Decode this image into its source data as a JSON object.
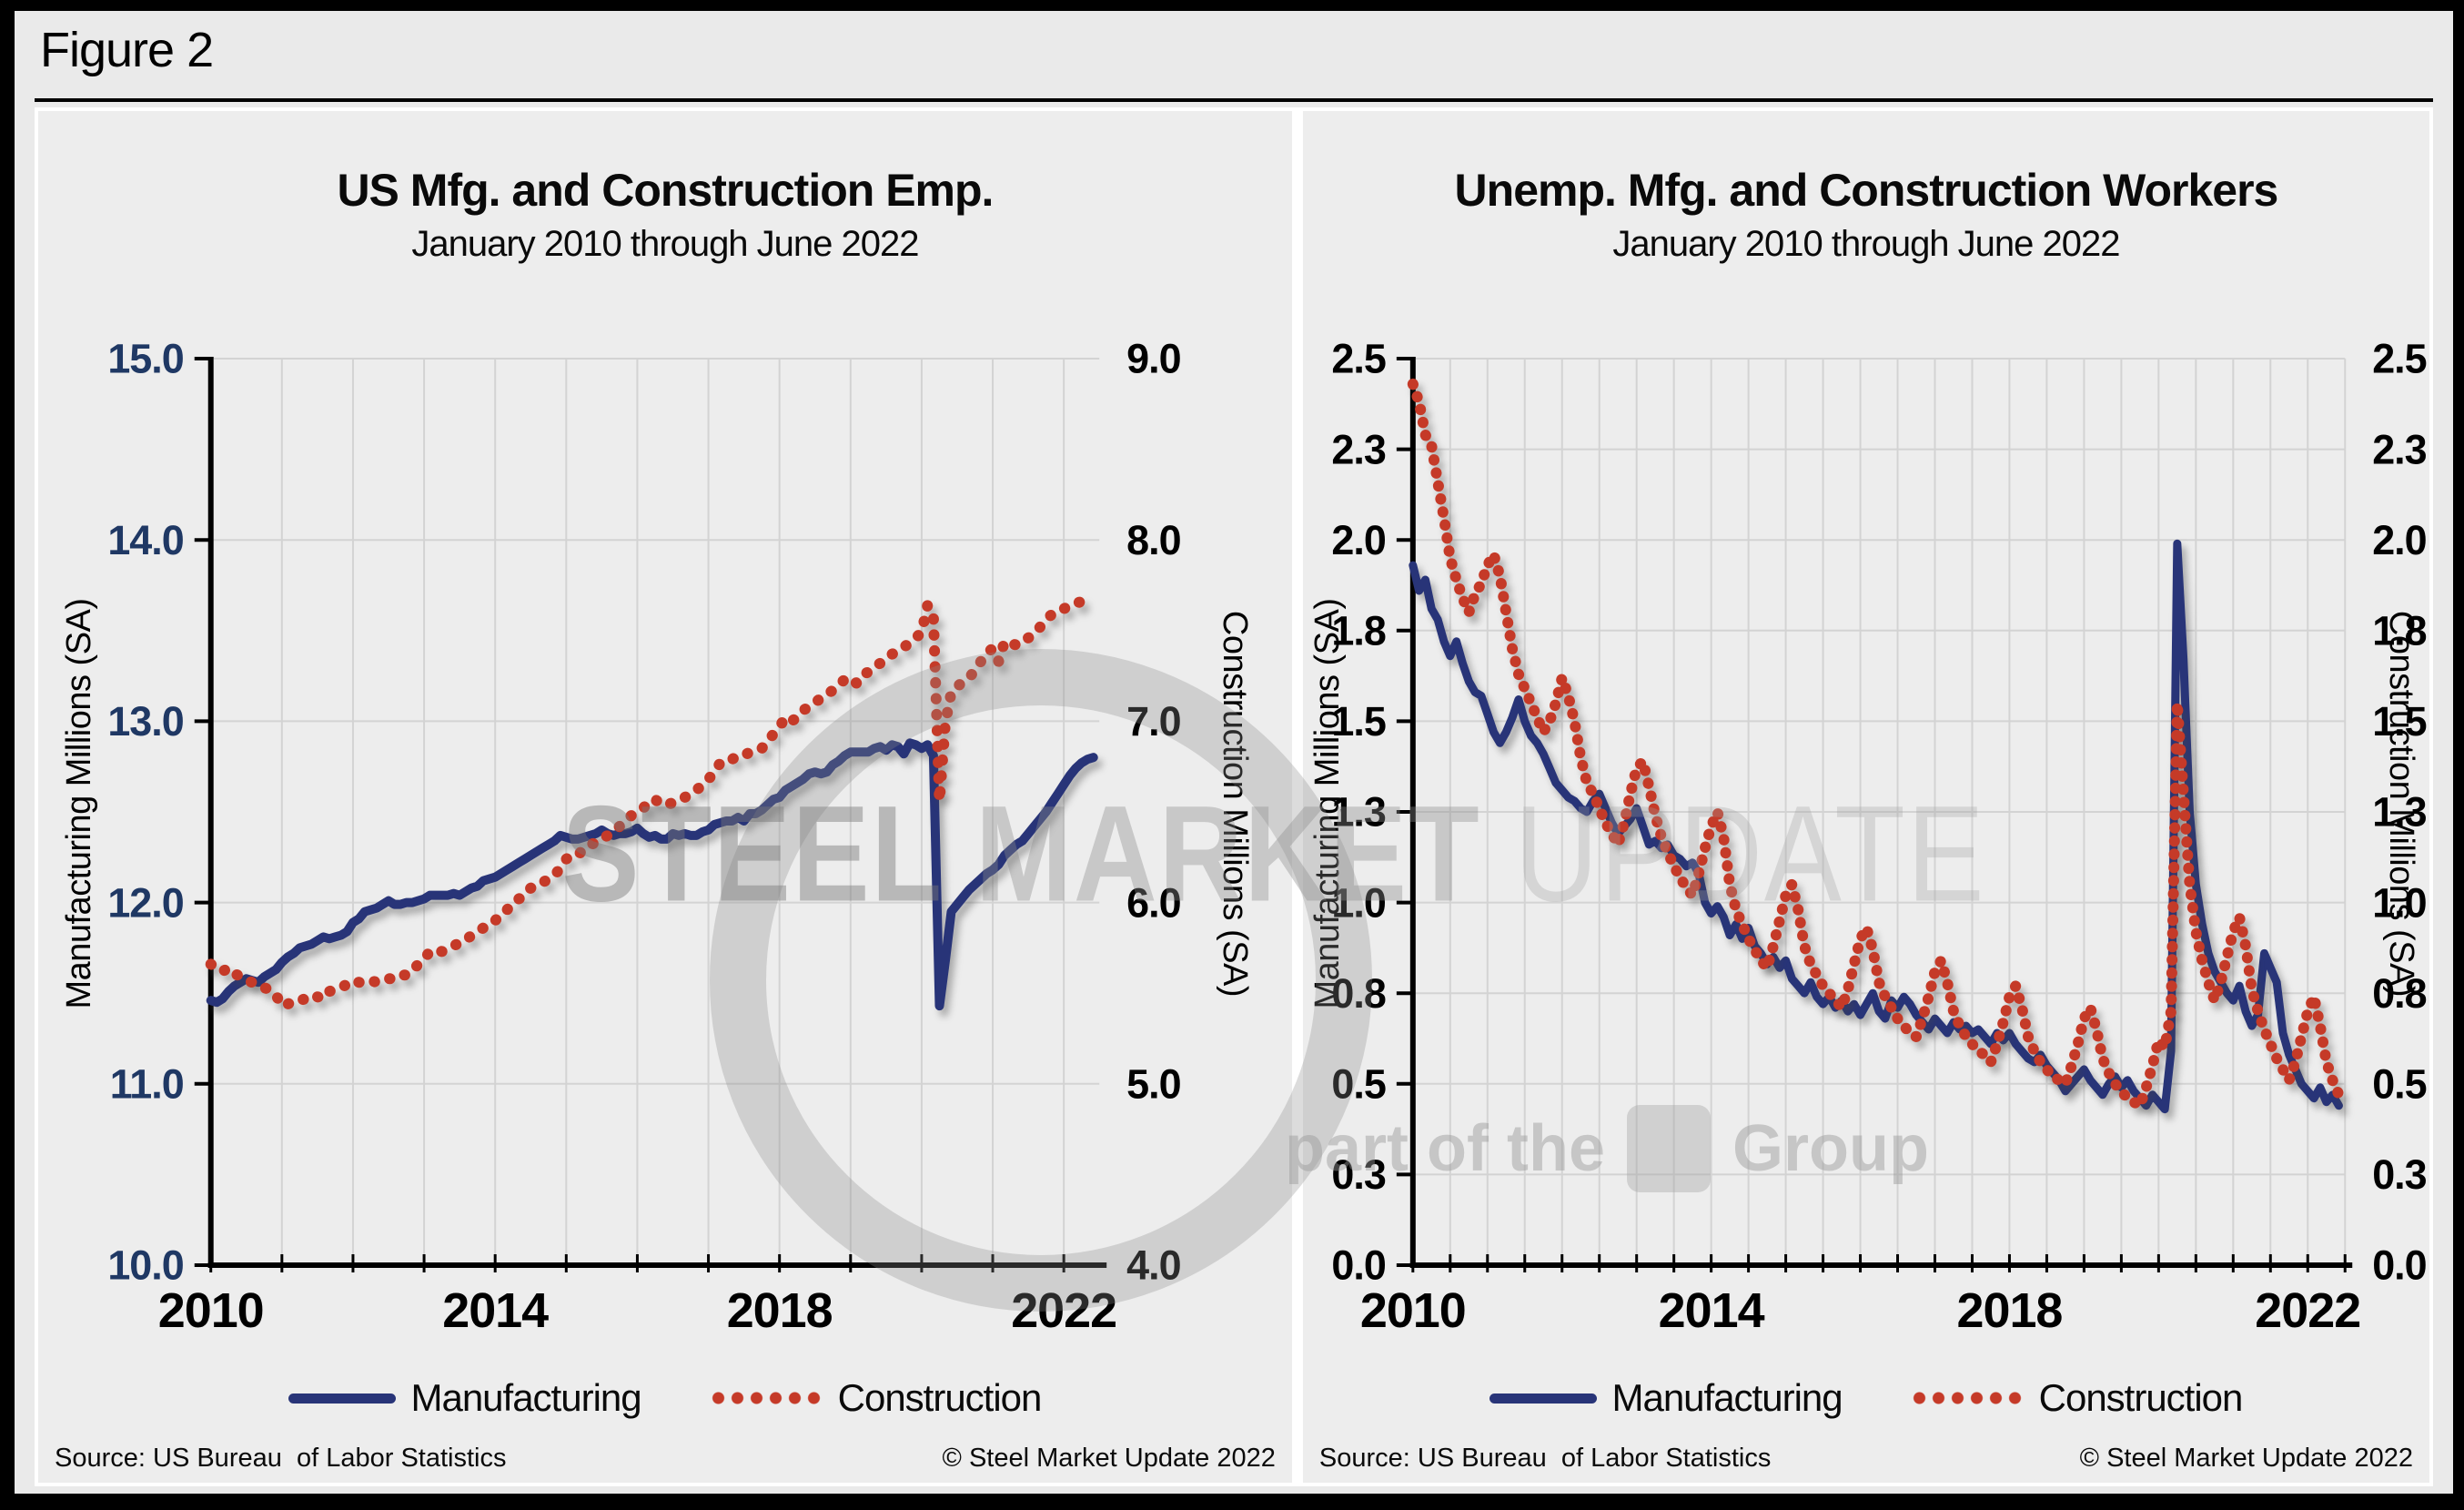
{
  "figure": {
    "label": "Figure 2"
  },
  "watermark": {
    "word1": "STEEL",
    "word2": "MARKET",
    "word3": "UPDATE",
    "tagline_pre": "part of the",
    "tagline_post": "Group"
  },
  "chart_data": [
    {
      "type": "line",
      "title": "US Mfg. and Construction Emp.",
      "subtitle": "January 2010 through June 2022",
      "x_axis": {
        "start": "January 2010",
        "end": "June 2022",
        "min_year": 2010,
        "max_year": 2022.5,
        "major_tick_years": [
          2010,
          2014,
          2018,
          2022
        ],
        "major_tick_labels": [
          "2010",
          "2014",
          "2018",
          "2022"
        ],
        "gridline_interval_years": 1
      },
      "y_left": {
        "label": "Manufacturing Millions (SA)",
        "min": 10,
        "max": 15,
        "ticks": [
          15,
          14,
          13,
          12,
          11,
          10
        ],
        "tick_labels": [
          "15.0",
          "14.0",
          "13.0",
          "12.0",
          "11.0",
          "10.0"
        ],
        "color": "#1F3864"
      },
      "y_right": {
        "label": "Construction Millions (SA)",
        "min": 4,
        "max": 9,
        "ticks": [
          9,
          8,
          7,
          6,
          5,
          4
        ],
        "tick_labels": [
          "9.0",
          "8.0",
          "7.0",
          "6.0",
          "5.0",
          "4.0"
        ],
        "color": "#000000"
      },
      "legend": [
        "Manufacturing",
        "Construction"
      ],
      "source": "Source: US Bureau  of Labor Statistics",
      "copyright": "© Steel Market Update 2022",
      "series": [
        {
          "name": "Manufacturing",
          "axis": "left",
          "style": "solid",
          "color": "#283478",
          "values": [
            11.46,
            11.45,
            11.47,
            11.51,
            11.54,
            11.56,
            11.58,
            11.57,
            11.56,
            11.59,
            11.61,
            11.63,
            11.67,
            11.7,
            11.72,
            11.75,
            11.76,
            11.77,
            11.79,
            11.81,
            11.8,
            11.81,
            11.82,
            11.84,
            11.89,
            11.91,
            11.95,
            11.96,
            11.97,
            11.99,
            12.01,
            11.99,
            11.99,
            12.0,
            12.0,
            12.01,
            12.02,
            12.04,
            12.04,
            12.04,
            12.04,
            12.05,
            12.04,
            12.06,
            12.08,
            12.09,
            12.12,
            12.13,
            12.14,
            12.16,
            12.18,
            12.2,
            12.22,
            12.24,
            12.26,
            12.28,
            12.3,
            12.32,
            12.34,
            12.37,
            12.36,
            12.35,
            12.35,
            12.36,
            12.37,
            12.38,
            12.4,
            12.38,
            12.37,
            12.38,
            12.38,
            12.39,
            12.41,
            12.38,
            12.36,
            12.37,
            12.35,
            12.35,
            12.38,
            12.37,
            12.38,
            12.37,
            12.37,
            12.39,
            12.4,
            12.43,
            12.44,
            12.45,
            12.45,
            12.47,
            12.45,
            12.49,
            12.49,
            12.51,
            12.54,
            12.57,
            12.58,
            12.62,
            12.64,
            12.66,
            12.68,
            12.71,
            12.72,
            12.71,
            12.72,
            12.76,
            12.78,
            12.81,
            12.83,
            12.83,
            12.83,
            12.83,
            12.85,
            12.86,
            12.84,
            12.87,
            12.86,
            12.82,
            12.88,
            12.87,
            12.85,
            12.87,
            12.81,
            11.43,
            11.68,
            11.95,
            11.99,
            12.03,
            12.07,
            12.1,
            12.13,
            12.16,
            12.18,
            12.21,
            12.26,
            12.29,
            12.32,
            12.34,
            12.38,
            12.42,
            12.46,
            12.5,
            12.55,
            12.6,
            12.65,
            12.7,
            12.74,
            12.77,
            12.79,
            12.8
          ]
        },
        {
          "name": "Construction",
          "axis": "right",
          "style": "dotted",
          "color": "#C53A28",
          "values": [
            5.66,
            5.64,
            5.62,
            5.64,
            5.61,
            5.59,
            5.57,
            5.56,
            5.55,
            5.53,
            5.52,
            5.49,
            5.43,
            5.44,
            5.46,
            5.46,
            5.47,
            5.46,
            5.48,
            5.47,
            5.51,
            5.52,
            5.53,
            5.55,
            5.57,
            5.56,
            5.56,
            5.57,
            5.56,
            5.57,
            5.58,
            5.58,
            5.6,
            5.6,
            5.62,
            5.66,
            5.69,
            5.73,
            5.74,
            5.73,
            5.75,
            5.76,
            5.78,
            5.79,
            5.82,
            5.84,
            5.86,
            5.87,
            5.9,
            5.94,
            5.96,
            6.0,
            6.02,
            6.04,
            6.08,
            6.09,
            6.11,
            6.13,
            6.15,
            6.19,
            6.24,
            6.26,
            6.26,
            6.3,
            6.32,
            6.33,
            6.35,
            6.37,
            6.39,
            6.42,
            6.45,
            6.48,
            6.5,
            6.52,
            6.56,
            6.57,
            6.54,
            6.54,
            6.55,
            6.57,
            6.58,
            6.6,
            6.62,
            6.65,
            6.68,
            6.72,
            6.77,
            6.77,
            6.79,
            6.81,
            6.81,
            6.83,
            6.84,
            6.85,
            6.89,
            6.93,
            6.97,
            7.02,
            7.0,
            7.02,
            7.06,
            7.08,
            7.1,
            7.13,
            7.15,
            7.17,
            7.2,
            7.23,
            7.24,
            7.21,
            7.26,
            7.27,
            7.3,
            7.32,
            7.34,
            7.37,
            7.39,
            7.41,
            7.43,
            7.46,
            7.49,
            7.64,
            7.57,
            6.56,
            6.99,
            7.16,
            7.19,
            7.22,
            7.24,
            7.28,
            7.33,
            7.38,
            7.4,
            7.33,
            7.44,
            7.43,
            7.42,
            7.43,
            7.46,
            7.48,
            7.52,
            7.56,
            7.59,
            7.61,
            7.62,
            7.64,
            7.65,
            7.66,
            7.67,
            7.68
          ]
        }
      ]
    },
    {
      "type": "line",
      "title": "Unemp. Mfg. and Construction Workers",
      "subtitle": "January 2010 through June 2022",
      "x_axis": {
        "start": "January 2010",
        "end": "June 2022",
        "min_year": 2010,
        "max_year": 2022.5,
        "major_tick_years": [
          2010,
          2014,
          2018,
          2022
        ],
        "major_tick_labels": [
          "2010",
          "2014",
          "2018",
          "2022"
        ],
        "gridline_interval_years": 0.5
      },
      "y_left": {
        "label": "Manufacturing Millions (SA)",
        "min": 0,
        "max": 2.5,
        "ticks": [
          2.5,
          2.25,
          2.0,
          1.75,
          1.5,
          1.25,
          1.0,
          0.75,
          0.5,
          0.25,
          0
        ],
        "tick_labels": [
          "2.5",
          "2.3",
          "2.0",
          "1.8",
          "1.5",
          "1.3",
          "1.0",
          "0.8",
          "0.5",
          "0.3",
          "0.0"
        ],
        "color": "#000000"
      },
      "y_right": {
        "label": "Construction Millions (SA)",
        "min": 0,
        "max": 2.5,
        "ticks": [
          2.5,
          2.25,
          2.0,
          1.75,
          1.5,
          1.25,
          1.0,
          0.75,
          0.5,
          0.25,
          0
        ],
        "tick_labels": [
          "2.5",
          "2.3",
          "2.0",
          "1.8",
          "1.5",
          "1.3",
          "1.0",
          "0.8",
          "0.5",
          "0.3",
          "0.0"
        ],
        "color": "#000000"
      },
      "legend": [
        "Manufacturing",
        "Construction"
      ],
      "source": "Source: US Bureau  of Labor Statistics",
      "copyright": "© Steel Market Update 2022",
      "series": [
        {
          "name": "Manufacturing",
          "axis": "left",
          "style": "solid",
          "color": "#283478",
          "values": [
            1.93,
            1.86,
            1.89,
            1.81,
            1.78,
            1.72,
            1.68,
            1.72,
            1.66,
            1.61,
            1.58,
            1.57,
            1.52,
            1.47,
            1.44,
            1.47,
            1.51,
            1.56,
            1.5,
            1.46,
            1.44,
            1.41,
            1.37,
            1.33,
            1.31,
            1.29,
            1.28,
            1.26,
            1.25,
            1.28,
            1.3,
            1.26,
            1.22,
            1.19,
            1.21,
            1.23,
            1.26,
            1.21,
            1.16,
            1.17,
            1.15,
            1.16,
            1.13,
            1.12,
            1.1,
            1.11,
            1.08,
            1.0,
            0.97,
            0.99,
            0.96,
            0.91,
            0.94,
            0.9,
            0.93,
            0.88,
            0.86,
            0.83,
            0.85,
            0.82,
            0.84,
            0.79,
            0.77,
            0.75,
            0.78,
            0.74,
            0.72,
            0.74,
            0.71,
            0.73,
            0.7,
            0.72,
            0.69,
            0.72,
            0.75,
            0.7,
            0.68,
            0.73,
            0.71,
            0.74,
            0.72,
            0.69,
            0.67,
            0.65,
            0.68,
            0.66,
            0.64,
            0.67,
            0.65,
            0.66,
            0.64,
            0.65,
            0.63,
            0.61,
            0.64,
            0.62,
            0.64,
            0.61,
            0.59,
            0.57,
            0.56,
            0.58,
            0.55,
            0.53,
            0.51,
            0.48,
            0.5,
            0.52,
            0.54,
            0.51,
            0.49,
            0.47,
            0.5,
            0.52,
            0.49,
            0.51,
            0.48,
            0.46,
            0.44,
            0.47,
            0.45,
            0.43,
            0.59,
            1.99,
            1.67,
            1.25,
            1.05,
            0.94,
            0.86,
            0.81,
            0.78,
            0.75,
            0.73,
            0.77,
            0.7,
            0.66,
            0.69,
            0.86,
            0.82,
            0.78,
            0.64,
            0.58,
            0.54,
            0.5,
            0.48,
            0.46,
            0.49,
            0.45,
            0.47,
            0.44
          ]
        },
        {
          "name": "Construction",
          "axis": "right",
          "style": "dotted",
          "color": "#C53A28",
          "values": [
            2.43,
            2.38,
            2.29,
            2.26,
            2.16,
            2.06,
            1.95,
            1.89,
            1.84,
            1.8,
            1.85,
            1.88,
            1.93,
            1.96,
            1.9,
            1.8,
            1.7,
            1.63,
            1.59,
            1.55,
            1.51,
            1.47,
            1.5,
            1.55,
            1.62,
            1.57,
            1.5,
            1.4,
            1.33,
            1.3,
            1.26,
            1.22,
            1.19,
            1.16,
            1.22,
            1.3,
            1.37,
            1.39,
            1.32,
            1.24,
            1.18,
            1.14,
            1.1,
            1.07,
            1.04,
            1.02,
            1.08,
            1.15,
            1.21,
            1.25,
            1.18,
            1.05,
            0.98,
            0.94,
            0.9,
            0.87,
            0.84,
            0.82,
            0.88,
            0.95,
            1.02,
            1.05,
            0.98,
            0.88,
            0.83,
            0.8,
            0.77,
            0.75,
            0.73,
            0.71,
            0.76,
            0.83,
            0.9,
            0.93,
            0.87,
            0.78,
            0.74,
            0.71,
            0.68,
            0.66,
            0.64,
            0.63,
            0.68,
            0.74,
            0.81,
            0.84,
            0.78,
            0.7,
            0.66,
            0.63,
            0.61,
            0.59,
            0.58,
            0.56,
            0.61,
            0.67,
            0.74,
            0.77,
            0.71,
            0.63,
            0.59,
            0.56,
            0.54,
            0.52,
            0.51,
            0.5,
            0.55,
            0.61,
            0.68,
            0.71,
            0.65,
            0.57,
            0.53,
            0.5,
            0.48,
            0.46,
            0.45,
            0.44,
            0.49,
            0.55,
            0.62,
            0.6,
            0.7,
            1.55,
            1.3,
            1.05,
            0.92,
            0.84,
            0.78,
            0.73,
            0.78,
            0.85,
            0.92,
            0.96,
            0.88,
            0.76,
            0.7,
            0.65,
            0.61,
            0.57,
            0.54,
            0.51,
            0.56,
            0.63,
            0.7,
            0.74,
            0.66,
            0.56,
            0.51,
            0.47
          ]
        }
      ]
    }
  ]
}
